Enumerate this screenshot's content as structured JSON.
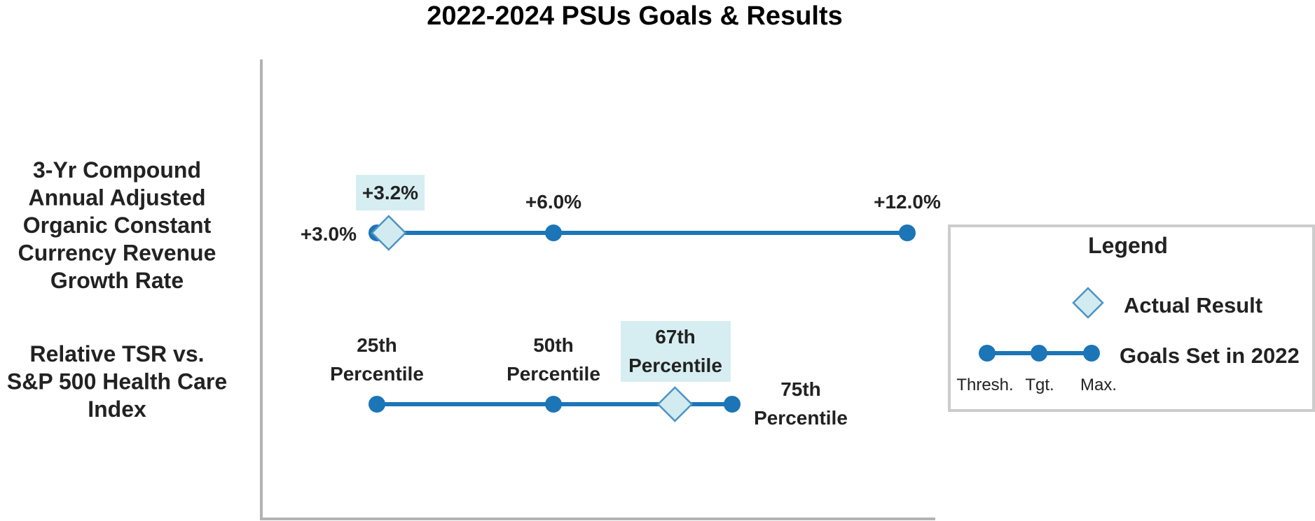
{
  "chart_data": {
    "type": "line",
    "title": "2022-2024 PSUs Goals & Results",
    "colors": {
      "goal_line": "#1b75b6",
      "actual_fill": "#d2ebf0",
      "actual_stroke": "#4a93c4",
      "label_highlight": "#d6eef2",
      "axis": "#b3b3b3",
      "text": "#222222",
      "legend_border": "#cccccc"
    },
    "metrics": [
      {
        "name_lines": [
          "3-Yr Compound",
          "Annual Adjusted",
          "Organic Constant",
          "Currency Revenue",
          "Growth Rate"
        ],
        "goals": [
          {
            "level": "threshold",
            "value": 3.0,
            "label_lines": [
              "+3.0%"
            ]
          },
          {
            "level": "target",
            "value": 6.0,
            "label_lines": [
              "+6.0%"
            ]
          },
          {
            "level": "max",
            "value": 12.0,
            "label_lines": [
              "+12.0%"
            ]
          }
        ],
        "actual": {
          "value": 3.2,
          "label_lines": [
            "+3.2%"
          ]
        }
      },
      {
        "name_lines": [
          "Relative TSR vs.",
          "S&P 500 Health Care",
          "Index"
        ],
        "goals": [
          {
            "level": "threshold",
            "value": 25,
            "label_lines": [
              "25th",
              "Percentile"
            ]
          },
          {
            "level": "target",
            "value": 50,
            "label_lines": [
              "50th",
              "Percentile"
            ]
          },
          {
            "level": "max",
            "value": 75,
            "label_lines": [
              "75th",
              "Percentile"
            ]
          }
        ],
        "actual": {
          "value": 67,
          "label_lines": [
            "67th",
            "Percentile"
          ]
        }
      }
    ],
    "legend": {
      "title": "Legend",
      "actual_label": "Actual Result",
      "goals_label": "Goals Set in 2022",
      "level_labels": [
        "Thresh.",
        "Tgt.",
        "Max."
      ]
    }
  }
}
